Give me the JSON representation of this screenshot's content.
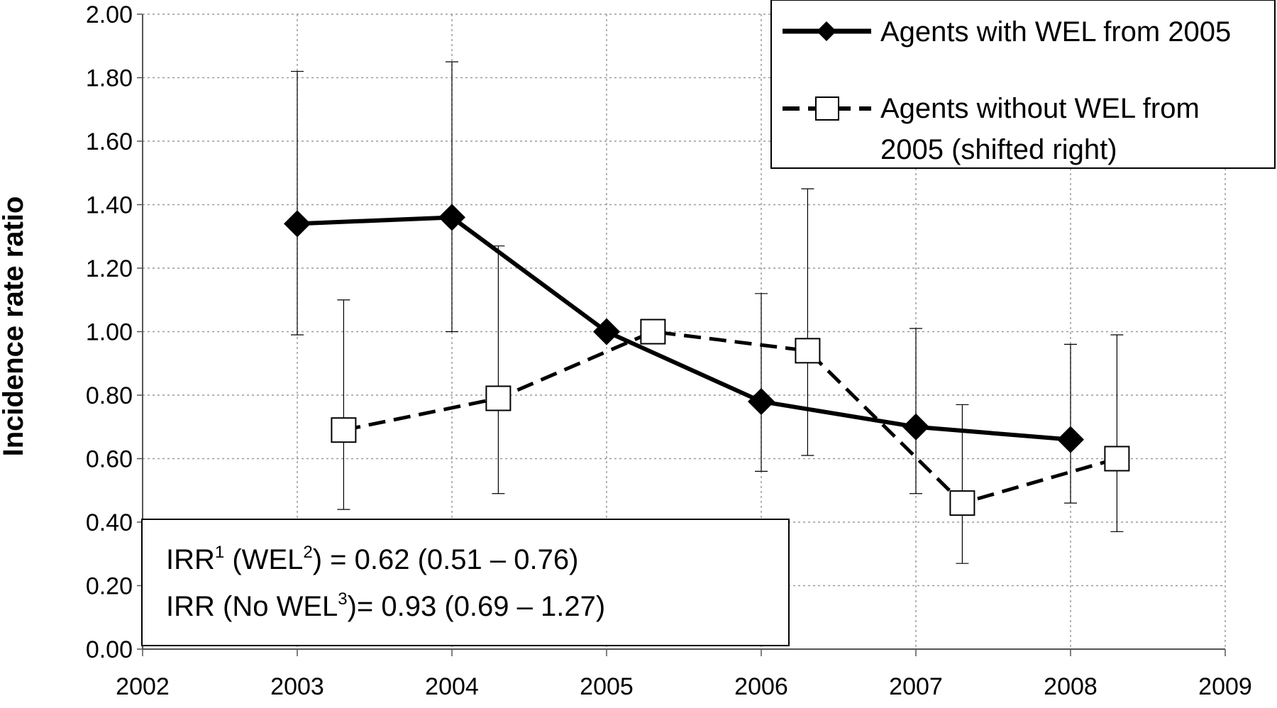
{
  "chart_data": {
    "type": "line",
    "xlabel": "",
    "ylabel": "Incidence rate ratio",
    "xlim": [
      2002,
      2009
    ],
    "ylim": [
      0,
      2
    ],
    "x_ticks": [
      "2002",
      "2003",
      "2004",
      "2005",
      "2006",
      "2007",
      "2008",
      "2009"
    ],
    "y_ticks": [
      "0.00",
      "0.20",
      "0.40",
      "0.60",
      "0.80",
      "1.00",
      "1.20",
      "1.40",
      "1.60",
      "1.80",
      "2.00"
    ],
    "grid": "horizontal and vertical gridlines",
    "legend_position": "top-right",
    "series": [
      {
        "name": "Agents with WEL from 2005",
        "style": "solid line, filled diamond markers",
        "color": "#000000",
        "x": [
          2003,
          2004,
          2005,
          2006,
          2007,
          2008
        ],
        "y": [
          1.34,
          1.36,
          1.0,
          0.78,
          0.7,
          0.66
        ],
        "ci_low": [
          0.99,
          1.0,
          1.0,
          0.56,
          0.49,
          0.46
        ],
        "ci_high": [
          1.82,
          1.85,
          1.0,
          1.12,
          1.01,
          0.96
        ]
      },
      {
        "name_line1": "Agents without WEL from",
        "name_line2": "2005 (shifted right)",
        "style": "dashed line, open square markers",
        "color": "#000000",
        "x": [
          2003.3,
          2004.3,
          2005.3,
          2006.3,
          2007.3,
          2008.3
        ],
        "y": [
          0.69,
          0.79,
          1.0,
          0.94,
          0.46,
          0.6
        ],
        "ci_low": [
          0.44,
          0.49,
          1.0,
          0.61,
          0.27,
          0.37
        ],
        "ci_high": [
          1.1,
          1.27,
          1.0,
          1.45,
          0.77,
          0.99
        ]
      }
    ],
    "annotation": {
      "line1": {
        "a": "IRR",
        "sup1": "1",
        "b": " (WEL",
        "sup2": "2",
        "c": ") = 0.62 (0.51 – 0.76)"
      },
      "line2": {
        "a": "IRR  (No WEL",
        "sup1": "3",
        "b": ")= 0.93 (0.69 –  1.27)"
      }
    }
  }
}
